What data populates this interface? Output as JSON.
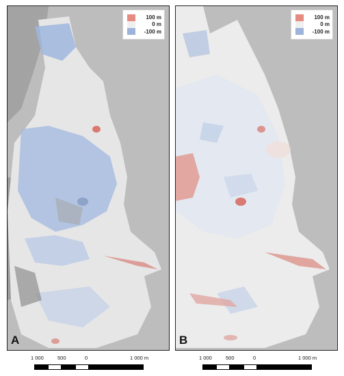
{
  "legend": {
    "high_label": "100 m",
    "mid_label": "0 m",
    "low_label": "-100 m",
    "colors": {
      "high": "#e78a82",
      "mid": "#efefef",
      "low": "#9db3d9"
    }
  },
  "panels": [
    {
      "letter": "A"
    },
    {
      "letter": "B"
    }
  ],
  "scalebar": {
    "labels": [
      "1 000",
      "500",
      "0",
      "1 000 m"
    ]
  }
}
